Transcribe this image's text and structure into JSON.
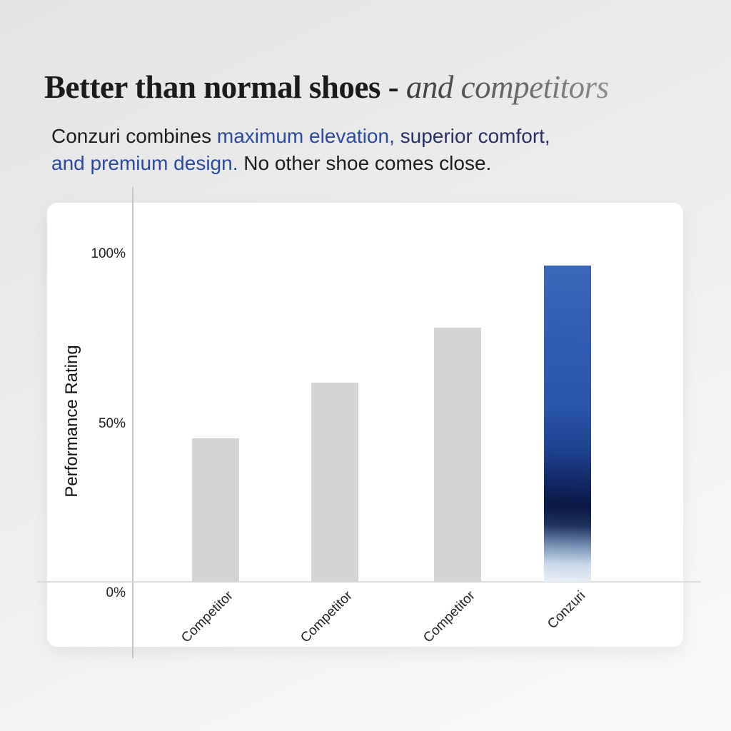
{
  "header": {
    "title_regular": "Better than normal shoes - ",
    "title_italic": "and competitors"
  },
  "subtitle": {
    "lines": [
      [
        {
          "text": "Conzuri combines ",
          "color": "#1d1d1f"
        },
        {
          "text": "maximum elevation,",
          "color": "#2a4aa0"
        },
        {
          "text": " ",
          "color": "#1d1d1f"
        },
        {
          "text": "superior comfort,",
          "color": "#253066"
        }
      ],
      [
        {
          "text": "and premium design.",
          "color": "#2a4aa0"
        },
        {
          "text": " No other shoe comes close.",
          "color": "#1d1d1f"
        }
      ]
    ]
  },
  "chart_data": {
    "type": "bar",
    "title": "",
    "categories": [
      "Competitor",
      "Competitor",
      "Competitor",
      "Conzuri"
    ],
    "values": [
      44,
      61,
      78,
      97
    ],
    "unit": "%",
    "xlabel": "",
    "ylabel": "Performance Rating",
    "ylim": [
      0,
      110
    ],
    "yticks": [
      {
        "label": "0%",
        "value": 0
      },
      {
        "label": "50%",
        "value": 50
      },
      {
        "label": "100%",
        "value": 100
      }
    ],
    "grid": false,
    "legend": false,
    "highlight_index": 3,
    "competitor_bar_color": "#d4d4d4",
    "highlight_gradient": [
      "#3b68b8",
      "#2f5cb2",
      "#2a55a9",
      "#1f4290",
      "#112a67",
      "#0a1845",
      "#1e3260",
      "#7e9abc",
      "#c7d6e8",
      "#e9eff6"
    ]
  },
  "colors": {
    "background_top": "#e4e4e4",
    "background_bottom": "#fafafa",
    "card": "#ffffff",
    "axis_line": "#c6c6c6",
    "text_dark": "#1d1d1f"
  }
}
